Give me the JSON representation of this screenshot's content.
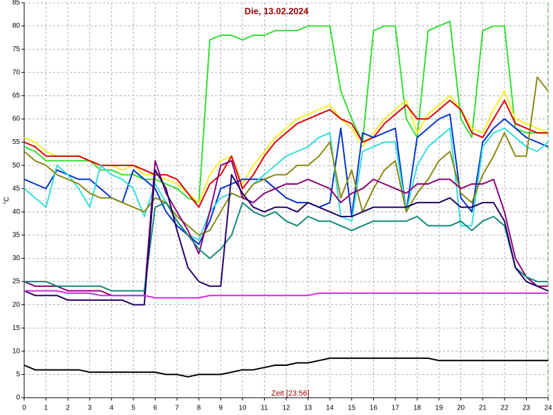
{
  "chart_data": {
    "type": "line",
    "title": "Die, 13.02.2024",
    "x_label": "Zeit [23:56]",
    "y_label": "°C",
    "x": [
      0,
      0.5,
      1,
      1.5,
      2,
      2.5,
      3,
      3.5,
      4,
      4.5,
      5,
      5.5,
      6,
      6.5,
      7,
      7.5,
      8,
      8.5,
      9,
      9.5,
      10,
      10.5,
      11,
      11.5,
      12,
      12.5,
      13,
      13.5,
      14,
      14.5,
      15,
      15.5,
      16,
      16.5,
      17,
      17.5,
      18,
      18.5,
      19,
      19.5,
      20,
      20.5,
      21,
      21.5,
      22,
      22.5,
      23,
      23.5,
      24
    ],
    "xlim": [
      0,
      24
    ],
    "ylim": [
      0,
      85
    ],
    "xticks": [
      0,
      1,
      2,
      3,
      4,
      5,
      6,
      7,
      8,
      9,
      10,
      11,
      12,
      13,
      14,
      15,
      16,
      17,
      18,
      19,
      20,
      21,
      22,
      23,
      24
    ],
    "yticks": [
      0,
      5,
      10,
      15,
      20,
      25,
      30,
      35,
      40,
      45,
      50,
      55,
      60,
      65,
      70,
      75,
      80,
      85
    ],
    "grid": true,
    "series": [
      {
        "color": "#33dd33",
        "values": [
          54,
          53,
          51,
          51,
          51,
          51,
          51,
          49,
          49,
          48,
          48,
          47,
          47,
          46,
          45,
          43,
          42,
          77,
          78,
          78,
          77,
          78,
          78,
          79,
          79,
          79,
          80,
          80,
          80,
          66,
          60,
          55,
          79,
          80,
          80,
          60,
          56,
          79,
          80,
          81,
          60,
          56,
          79,
          80,
          80,
          58,
          57,
          57,
          57
        ]
      },
      {
        "color": "#ffee22",
        "values": [
          56,
          55,
          53,
          52,
          52,
          52,
          51,
          50,
          50,
          49,
          50,
          48,
          48,
          47,
          46,
          44,
          42,
          48,
          51,
          52,
          46,
          50,
          53,
          56,
          58,
          60,
          61,
          62,
          63,
          60,
          58,
          54,
          57,
          60,
          62,
          64,
          57,
          61,
          63,
          65,
          62,
          58,
          57,
          62,
          66,
          60,
          59,
          58,
          57
        ]
      },
      {
        "color": "#dd0000",
        "values": [
          55,
          54,
          52,
          52,
          52,
          52,
          51,
          50,
          50,
          50,
          50,
          49,
          48,
          48,
          47,
          44,
          41,
          46,
          48,
          52,
          45,
          48,
          52,
          55,
          57,
          59,
          60,
          61,
          62,
          60,
          59,
          55,
          56,
          59,
          61,
          63,
          60,
          60,
          62,
          64,
          62,
          57,
          56,
          60,
          64,
          59,
          58,
          57,
          57
        ]
      },
      {
        "color": "#0033cc",
        "values": [
          47,
          46,
          45,
          49,
          48,
          47,
          47,
          45,
          43,
          42,
          49,
          47,
          45,
          40,
          37,
          35,
          33,
          38,
          45,
          46,
          47,
          47,
          47,
          45,
          43,
          42,
          42,
          41,
          42,
          58,
          39,
          57,
          56,
          57,
          58,
          40,
          56,
          58,
          60,
          61,
          43,
          40,
          55,
          58,
          60,
          58,
          56,
          55,
          54
        ]
      },
      {
        "color": "#33dddd",
        "values": [
          45,
          43,
          41,
          50,
          48,
          45,
          41,
          50,
          48,
          47,
          45,
          39,
          46,
          42,
          38,
          35,
          34,
          40,
          43,
          44,
          43,
          46,
          48,
          50,
          52,
          53,
          54,
          56,
          57,
          39,
          38,
          53,
          54,
          55,
          55,
          40,
          50,
          54,
          56,
          58,
          37,
          37,
          54,
          57,
          58,
          56,
          54,
          53,
          55
        ]
      },
      {
        "color": "#888811",
        "values": [
          53,
          51,
          50,
          48,
          47,
          46,
          44,
          43,
          43,
          42,
          41,
          40,
          43,
          42,
          39,
          37,
          35,
          36,
          40,
          44,
          43,
          46,
          47,
          48,
          48,
          50,
          50,
          52,
          55,
          43,
          49,
          40,
          45,
          49,
          51,
          40,
          44,
          47,
          51,
          53,
          44,
          42,
          48,
          52,
          57,
          52,
          52,
          69,
          66
        ]
      },
      {
        "color": "#880077",
        "values": [
          25,
          24,
          24,
          24,
          23,
          23,
          23,
          23,
          22,
          22,
          22,
          22,
          51,
          44,
          40,
          36,
          31,
          40,
          50,
          51,
          43,
          42,
          44,
          45,
          46,
          46,
          47,
          46,
          45,
          42,
          44,
          45,
          47,
          46,
          45,
          44,
          46,
          46,
          47,
          47,
          45,
          46,
          46,
          47,
          40,
          30,
          26,
          24,
          24
        ]
      },
      {
        "color": "#118877",
        "values": [
          25,
          25,
          25,
          24,
          24,
          24,
          24,
          24,
          23,
          23,
          23,
          23,
          41,
          42,
          38,
          35,
          32,
          30,
          32,
          35,
          42,
          40,
          39,
          40,
          38,
          37,
          39,
          38,
          38,
          37,
          36,
          37,
          38,
          38,
          38,
          38,
          39,
          37,
          37,
          37,
          38,
          36,
          38,
          39,
          37,
          28,
          26,
          25,
          25
        ]
      },
      {
        "color": "#220066",
        "values": [
          23,
          22,
          22,
          22,
          21,
          21,
          21,
          21,
          21,
          21,
          20,
          20,
          49,
          45,
          36,
          28,
          25,
          24,
          24,
          48,
          44,
          41,
          40,
          41,
          41,
          40,
          42,
          41,
          40,
          39,
          39,
          40,
          41,
          41,
          41,
          41,
          42,
          42,
          42,
          43,
          41,
          41,
          42,
          42,
          38,
          28,
          25,
          24,
          23
        ]
      },
      {
        "color": "#dd22dd",
        "values": [
          23,
          23,
          23,
          23,
          22.5,
          22.5,
          22.5,
          22,
          22,
          22,
          22,
          22,
          21.5,
          21.5,
          21.5,
          21.5,
          21.5,
          22,
          22,
          22,
          22,
          22,
          22,
          22,
          22,
          22,
          22,
          22.5,
          22.5,
          22.5,
          22.5,
          22.5,
          22.5,
          22.5,
          22.5,
          22.5,
          22.5,
          22.5,
          22.5,
          22.5,
          22.5,
          22.5,
          22.5,
          22.5,
          22.5,
          22.5,
          22.5,
          22.5,
          22.5
        ]
      },
      {
        "color": "#000000",
        "values": [
          7,
          6,
          6,
          6,
          6,
          6,
          5.5,
          5.5,
          5.5,
          5.5,
          5.5,
          5.5,
          5.5,
          5,
          5,
          4.5,
          5,
          5,
          5,
          5.5,
          6,
          6,
          6.5,
          7,
          7,
          7.5,
          7.5,
          8,
          8.5,
          8.5,
          8.5,
          8.5,
          8.5,
          8.5,
          8.5,
          8.5,
          8.5,
          8.5,
          8,
          8,
          8,
          8,
          8,
          8,
          8,
          8,
          8,
          8,
          8
        ]
      }
    ]
  }
}
